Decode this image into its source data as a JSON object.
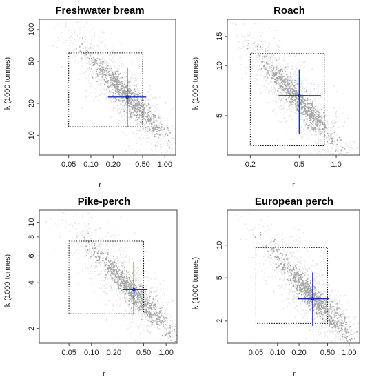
{
  "chart_data": [
    {
      "type": "scatter",
      "title": "Freshwater bream",
      "xlabel": "r",
      "ylabel": "k (1000 tonnes)",
      "xscale": "log",
      "yscale": "log",
      "xlim": [
        0.02,
        1.4
      ],
      "ylim": [
        6.5,
        125
      ],
      "x_ticks": [
        0.05,
        0.1,
        0.2,
        0.5,
        1.0
      ],
      "x_tick_labels": [
        "0.05",
        "0.10",
        "0.20",
        "0.50",
        "1.00"
      ],
      "y_ticks": [
        10,
        20,
        50,
        100
      ],
      "y_tick_labels": [
        "10",
        "20",
        "50",
        "100"
      ],
      "prior_box": {
        "r": [
          0.05,
          0.5
        ],
        "k": [
          12,
          60
        ]
      },
      "cloud_center": {
        "r": 0.28,
        "k": 25
      },
      "estimate": {
        "r": 0.31,
        "k": 23,
        "r_ci": [
          0.17,
          0.56
        ],
        "k_ci": [
          12,
          44
        ]
      },
      "colors": {
        "cloud_light": "#e6e6e6",
        "cloud_dark": "#a6a6a6",
        "estimate": "#1d2fb0",
        "box": "#000000"
      }
    },
    {
      "type": "scatter",
      "title": "Roach",
      "xlabel": "r",
      "ylabel": "k (1000 tonnes)",
      "xscale": "log",
      "yscale": "log",
      "xlim": [
        0.13,
        1.55
      ],
      "ylim": [
        2.9,
        19
      ],
      "x_ticks": [
        0.2,
        0.5,
        1.0
      ],
      "x_tick_labels": [
        "0.2",
        "0.5",
        "1.0"
      ],
      "y_ticks": [
        5,
        10,
        15
      ],
      "y_tick_labels": [
        "5",
        "10",
        "15"
      ],
      "prior_box": {
        "r": [
          0.2,
          0.8
        ],
        "k": [
          3.3,
          11.8
        ]
      },
      "cloud_center": {
        "r": 0.45,
        "k": 6.7
      },
      "estimate": {
        "r": 0.5,
        "k": 6.6,
        "r_ci": [
          0.34,
          0.75
        ],
        "k_ci": [
          3.9,
          9.5
        ]
      },
      "colors": {
        "cloud_light": "#e6e6e6",
        "cloud_dark": "#a6a6a6",
        "estimate": "#1d2fb0",
        "box": "#000000"
      }
    },
    {
      "type": "scatter",
      "title": "Pike-perch",
      "xlabel": "r",
      "ylabel": "k (1000 tonnes)",
      "xscale": "log",
      "yscale": "log",
      "xlim": [
        0.02,
        1.4
      ],
      "ylim": [
        1.6,
        12
      ],
      "x_ticks": [
        0.05,
        0.1,
        0.2,
        0.5,
        1.0
      ],
      "x_tick_labels": [
        "0.05",
        "0.10",
        "0.20",
        "0.50",
        "1.00"
      ],
      "y_ticks": [
        2,
        4,
        6,
        8,
        10
      ],
      "y_tick_labels": [
        "2",
        "4",
        "6",
        "8",
        "10"
      ],
      "prior_box": {
        "r": [
          0.05,
          0.5
        ],
        "k": [
          2.5,
          7.5
        ]
      },
      "cloud_center": {
        "r": 0.3,
        "k": 3.8
      },
      "estimate": {
        "r": 0.37,
        "k": 3.6,
        "r_ci": [
          0.26,
          0.55
        ],
        "k_ci": [
          2.5,
          5.5
        ]
      },
      "colors": {
        "cloud_light": "#e6e6e6",
        "cloud_dark": "#a6a6a6",
        "estimate": "#1d2fb0",
        "box": "#000000"
      }
    },
    {
      "type": "scatter",
      "title": "European perch",
      "xlabel": "r",
      "ylabel": "k (1000 tonnes)",
      "xscale": "log",
      "yscale": "log",
      "xlim": [
        0.02,
        1.4
      ],
      "ylim": [
        1.25,
        21
      ],
      "x_ticks": [
        0.05,
        0.1,
        0.2,
        0.5,
        1.0
      ],
      "x_tick_labels": [
        "0.05",
        "0.10",
        "0.20",
        "0.50",
        "1.00"
      ],
      "y_ticks": [
        2,
        5,
        10
      ],
      "y_tick_labels": [
        "2",
        "5",
        "10"
      ],
      "prior_box": {
        "r": [
          0.05,
          0.5
        ],
        "k": [
          1.9,
          9.5
        ]
      },
      "cloud_center": {
        "r": 0.28,
        "k": 3.6
      },
      "estimate": {
        "r": 0.31,
        "k": 3.2,
        "r_ci": [
          0.19,
          0.53
        ],
        "k_ci": [
          1.8,
          5.6
        ]
      },
      "colors": {
        "cloud_light": "#e6e6e6",
        "cloud_dark": "#a6a6a6",
        "estimate": "#1d2fb0",
        "box": "#000000"
      }
    }
  ]
}
